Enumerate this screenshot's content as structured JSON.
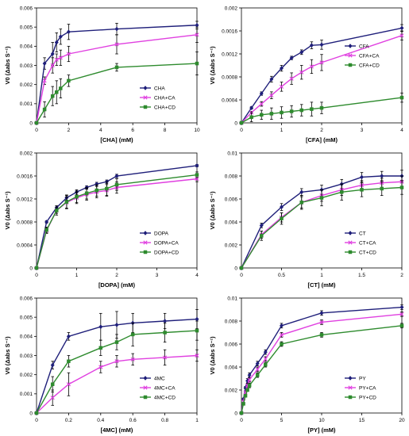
{
  "chart_data": [
    {
      "type": "line",
      "xlabel": "[CHA] (mM)",
      "ylabel": "V0 (Δabs S⁻¹)",
      "xlim": [
        0,
        10
      ],
      "xticks": [
        0,
        2,
        4,
        6,
        8,
        10
      ],
      "ylim": [
        0,
        0.006
      ],
      "yticks": [
        "0",
        "0.001",
        "0.002",
        "0.003",
        "0.004",
        "0.005",
        "0.006"
      ],
      "legend": "bottom-right",
      "series": [
        {
          "name": "CHA",
          "color": "#1f1f7a",
          "marker": "diamond",
          "x": [
            0,
            0.5,
            1,
            1.25,
            1.5,
            2,
            5,
            10
          ],
          "y": [
            0,
            0.0031,
            0.0036,
            0.0042,
            0.0045,
            0.00475,
            0.0049,
            0.0051
          ],
          "err": [
            0,
            0.0003,
            0.0006,
            0.0005,
            0.0004,
            0.0004,
            0.0003,
            0.0002
          ]
        },
        {
          "name": "CHA+CA",
          "color": "#e040e0",
          "marker": "x",
          "x": [
            0,
            0.5,
            1,
            1.25,
            1.5,
            2,
            5,
            10
          ],
          "y": [
            0,
            0.0022,
            0.003,
            0.0033,
            0.0034,
            0.0036,
            0.0041,
            0.0046
          ],
          "err": [
            0,
            0.0002,
            0.0004,
            0.0003,
            0.0004,
            0.0004,
            0.0005,
            0.0004
          ]
        },
        {
          "name": "CHA+CD",
          "color": "#2e8b2e",
          "marker": "square",
          "x": [
            0,
            0.5,
            1,
            1.25,
            1.5,
            2,
            5,
            10
          ],
          "y": [
            0,
            0.0007,
            0.0014,
            0.0016,
            0.0018,
            0.0022,
            0.0029,
            0.0031
          ],
          "err": [
            0,
            0.0004,
            0.0005,
            0.0006,
            0.0005,
            0.0003,
            0.0002,
            0.0006
          ]
        }
      ]
    },
    {
      "type": "line",
      "xlabel": "[CFA]  (mM)",
      "ylabel": "V0 (Δabs S⁻¹)",
      "xlim": [
        0,
        4
      ],
      "xticks": [
        0,
        1,
        2,
        3,
        4
      ],
      "ylim": [
        0,
        0.002
      ],
      "yticks": [
        "0",
        "0.0004",
        "0.0008",
        "0.0012",
        "0.0016",
        "0.002"
      ],
      "legend": "middle-right",
      "series": [
        {
          "name": "CFA",
          "color": "#1f1f7a",
          "marker": "diamond",
          "x": [
            0,
            0.25,
            0.5,
            0.75,
            1,
            1.25,
            1.5,
            1.75,
            2,
            4
          ],
          "y": [
            0,
            0.00026,
            0.00051,
            0.00076,
            0.00095,
            0.00113,
            0.00123,
            0.00135,
            0.00136,
            0.00165
          ],
          "err": [
            0,
            2e-05,
            3e-05,
            5e-05,
            5e-05,
            3e-05,
            4e-05,
            6e-05,
            8e-05,
            6e-05
          ]
        },
        {
          "name": "CFA+CA",
          "color": "#e040e0",
          "marker": "x",
          "x": [
            0,
            0.25,
            0.5,
            0.75,
            1,
            1.25,
            1.5,
            1.75,
            2,
            4
          ],
          "y": [
            0,
            0.00018,
            0.00033,
            0.00048,
            0.00063,
            0.00077,
            0.00088,
            0.00098,
            0.00105,
            0.00152
          ],
          "err": [
            0,
            2e-05,
            4e-05,
            6e-05,
            8e-05,
            0.0001,
            0.00012,
            0.00012,
            0.00014,
            8e-05
          ]
        },
        {
          "name": "CFA+CD",
          "color": "#2e8b2e",
          "marker": "square",
          "x": [
            0,
            0.25,
            0.5,
            0.75,
            1,
            1.25,
            1.5,
            1.75,
            2,
            4
          ],
          "y": [
            0,
            0.0001,
            0.00014,
            0.00016,
            0.00018,
            0.0002,
            0.00022,
            0.00024,
            0.00026,
            0.00044
          ],
          "err": [
            0,
            8e-05,
            8e-05,
            0.0001,
            0.0001,
            0.0001,
            0.0001,
            0.00012,
            0.0001,
            8e-05
          ]
        }
      ]
    },
    {
      "type": "line",
      "xlabel": "[DOPA]  (mM)",
      "ylabel": "V0 (Δabs S⁻¹)",
      "xlim": [
        0,
        4
      ],
      "xticks": [
        0,
        1,
        2,
        3,
        4
      ],
      "ylim": [
        0,
        0.002
      ],
      "yticks": [
        "0",
        "0.0004",
        "0.0008",
        "0.0012",
        "0.0016",
        "0.002"
      ],
      "legend": "bottom-right",
      "series": [
        {
          "name": "DOPA",
          "color": "#1f1f7a",
          "marker": "diamond",
          "x": [
            0,
            0.25,
            0.5,
            0.75,
            1,
            1.25,
            1.5,
            1.75,
            2,
            4
          ],
          "y": [
            0,
            0.0008,
            0.00105,
            0.00122,
            0.00132,
            0.0014,
            0.00146,
            0.0015,
            0.0016,
            0.00178
          ],
          "err": [
            0,
            2e-05,
            3e-05,
            4e-05,
            4e-05,
            3e-05,
            3e-05,
            3e-05,
            3e-05,
            2e-05
          ]
        },
        {
          "name": "DOPA+CA",
          "color": "#e040e0",
          "marker": "x",
          "x": [
            0,
            0.25,
            0.5,
            0.75,
            1,
            1.25,
            1.5,
            1.75,
            2,
            4
          ],
          "y": [
            0,
            0.00065,
            0.001,
            0.00114,
            0.00122,
            0.00128,
            0.00132,
            0.00135,
            0.0014,
            0.00155
          ],
          "err": [
            0,
            5e-05,
            5e-05,
            0.0001,
            0.0001,
            0.0001,
            0.0001,
            0.0001,
            0.0001,
            5e-05
          ]
        },
        {
          "name": "DOPA+CD",
          "color": "#2e8b2e",
          "marker": "square",
          "x": [
            0,
            0.25,
            0.5,
            0.75,
            1,
            1.25,
            1.5,
            1.75,
            2,
            4
          ],
          "y": [
            0,
            0.00066,
            0.001,
            0.00115,
            0.00124,
            0.0013,
            0.00135,
            0.00138,
            0.00145,
            0.00162
          ],
          "err": [
            0,
            5e-05,
            8e-05,
            0.00012,
            0.0001,
            0.0001,
            0.0001,
            0.00012,
            0.0001,
            5e-05
          ]
        }
      ]
    },
    {
      "type": "line",
      "xlabel": "[CT] (mM)",
      "ylabel": "V0 (Δabs S⁻¹)",
      "xlim": [
        0,
        2
      ],
      "xticks": [
        "0",
        "0.5",
        "1",
        "1.5",
        "2"
      ],
      "ylim": [
        0,
        0.01
      ],
      "yticks": [
        "0",
        "0.002",
        "0.004",
        "0.006",
        "0.008",
        "0.01"
      ],
      "legend": "bottom-right",
      "series": [
        {
          "name": "CT",
          "color": "#1f1f7a",
          "marker": "diamond",
          "x": [
            0,
            0.25,
            0.5,
            0.75,
            1,
            1.25,
            1.5,
            1.75,
            2
          ],
          "y": [
            0,
            0.0037,
            0.0053,
            0.0066,
            0.0068,
            0.0073,
            0.0079,
            0.008,
            0.008
          ],
          "err": [
            0,
            0.0002,
            0.0003,
            0.0003,
            0.0004,
            0.0004,
            0.0004,
            0.0004,
            0.0005
          ]
        },
        {
          "name": "CT+CA",
          "color": "#e040e0",
          "marker": "x",
          "x": [
            0,
            0.25,
            0.5,
            0.75,
            1,
            1.25,
            1.5,
            1.75,
            2
          ],
          "y": [
            0,
            0.0029,
            0.0044,
            0.0057,
            0.0063,
            0.0068,
            0.0072,
            0.0074,
            0.0075
          ],
          "err": [
            0,
            0.0003,
            0.0004,
            0.0005,
            0.0005,
            0.0005,
            0.0004,
            0.0004,
            0.0005
          ]
        },
        {
          "name": "CT+CD",
          "color": "#2e8b2e",
          "marker": "square",
          "x": [
            0,
            0.25,
            0.5,
            0.75,
            1,
            1.25,
            1.5,
            1.75,
            2
          ],
          "y": [
            0,
            0.0028,
            0.0043,
            0.0057,
            0.0061,
            0.0066,
            0.0068,
            0.0069,
            0.007
          ],
          "err": [
            0,
            0.0004,
            0.0005,
            0.0006,
            0.0007,
            0.0007,
            0.0006,
            0.0006,
            0.0006
          ]
        }
      ]
    },
    {
      "type": "line",
      "xlabel": "[4MC] (mM)",
      "ylabel": "V0 (Δabs S⁻¹)",
      "xlim": [
        0,
        1
      ],
      "xticks": [
        "0",
        "0.2",
        "0.4",
        "0.6",
        "0.8",
        "1"
      ],
      "ylim": [
        0,
        0.006
      ],
      "yticks": [
        "0",
        "0.001",
        "0.002",
        "0.003",
        "0.004",
        "0.005",
        "0.006"
      ],
      "legend": "bottom-right",
      "series": [
        {
          "name": "4MC",
          "color": "#1f1f7a",
          "marker": "diamond",
          "x": [
            0,
            0.1,
            0.2,
            0.4,
            0.5,
            0.6,
            0.8,
            1
          ],
          "y": [
            0,
            0.0025,
            0.004,
            0.0045,
            0.0046,
            0.0047,
            0.0048,
            0.0049
          ],
          "err": [
            0,
            0.0002,
            0.0002,
            0.0007,
            0.0007,
            0.0005,
            0.0004,
            0.0005
          ]
        },
        {
          "name": "4MC+CA",
          "color": "#e040e0",
          "marker": "x",
          "x": [
            0,
            0.1,
            0.2,
            0.4,
            0.5,
            0.6,
            0.8,
            1
          ],
          "y": [
            0,
            0.0008,
            0.0015,
            0.0024,
            0.0027,
            0.0028,
            0.0029,
            0.003
          ],
          "err": [
            0,
            0.0004,
            0.0006,
            0.0003,
            0.0003,
            0.0003,
            0.0004,
            0.0003
          ]
        },
        {
          "name": "4MC+CD",
          "color": "#2e8b2e",
          "marker": "square",
          "x": [
            0,
            0.1,
            0.2,
            0.4,
            0.5,
            0.6,
            0.8,
            1
          ],
          "y": [
            0,
            0.0015,
            0.0027,
            0.0034,
            0.0037,
            0.0041,
            0.0042,
            0.0043
          ],
          "err": [
            0,
            0.0004,
            0.0003,
            0.0004,
            0.0004,
            0.0006,
            0.0005,
            0.0005
          ]
        }
      ]
    },
    {
      "type": "line",
      "xlabel": "[PY]  (mM)",
      "ylabel": "V0 (Δabs S⁻¹)",
      "xlim": [
        0,
        20
      ],
      "xticks": [
        0,
        5,
        10,
        15,
        20
      ],
      "ylim": [
        0,
        0.01
      ],
      "yticks": [
        "0",
        "0.002",
        "0.004",
        "0.006",
        "0.008",
        "0.01"
      ],
      "legend": "bottom-right",
      "series": [
        {
          "name": "PY",
          "color": "#1f1f7a",
          "marker": "diamond",
          "x": [
            0,
            0.25,
            0.5,
            0.75,
            1,
            2,
            3,
            5,
            10,
            20
          ],
          "y": [
            0,
            0.0012,
            0.0022,
            0.0028,
            0.0033,
            0.0043,
            0.0053,
            0.0076,
            0.0087,
            0.0092
          ],
          "err": [
            0,
            0.0001,
            0.0001,
            0.0002,
            0.0002,
            0.0002,
            0.0002,
            0.0002,
            0.0002,
            0.0002
          ]
        },
        {
          "name": "PY+CA",
          "color": "#e040e0",
          "marker": "x",
          "x": [
            0,
            0.25,
            0.5,
            0.75,
            1,
            2,
            3,
            5,
            10,
            20
          ],
          "y": [
            0,
            0.001,
            0.0018,
            0.0024,
            0.0029,
            0.0038,
            0.0047,
            0.0068,
            0.0079,
            0.0086
          ],
          "err": [
            0,
            0.0001,
            0.0001,
            0.0002,
            0.0002,
            0.0002,
            0.0002,
            0.0002,
            0.0002,
            0.0002
          ]
        },
        {
          "name": "PY+CD",
          "color": "#2e8b2e",
          "marker": "square",
          "x": [
            0,
            0.25,
            0.5,
            0.75,
            1,
            2,
            3,
            5,
            10,
            20
          ],
          "y": [
            0,
            0.0008,
            0.0015,
            0.002,
            0.0024,
            0.0033,
            0.0042,
            0.006,
            0.0068,
            0.0076
          ],
          "err": [
            0,
            0.0001,
            0.0001,
            0.0001,
            0.0002,
            0.0002,
            0.0002,
            0.0002,
            0.0002,
            0.0002
          ]
        }
      ]
    }
  ]
}
